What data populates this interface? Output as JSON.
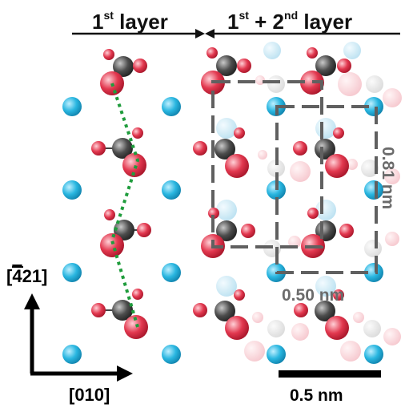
{
  "header": {
    "left_title": "1",
    "left_sup": "st",
    "left_rest": " layer",
    "right_title_a": "1",
    "right_sup_a": "st",
    "right_mid": " + 2",
    "right_sup_b": "nd",
    "right_rest": " layer"
  },
  "dimensions": {
    "height_label": "0.81 nm",
    "width_label": "0.50 nm"
  },
  "scalebar": {
    "label": "0.5 nm"
  },
  "axes": {
    "vertical_prefix": "[",
    "vertical_digit_barred": "4",
    "vertical_rest": "21]",
    "horizontal_label": "[010]"
  },
  "colors": {
    "cation": "#29b6e0",
    "oxygen": "#e2384f",
    "hydrogen_oxygen_small": "#e24a5c",
    "carbon": "#4d4d4d",
    "dashed_box": "#606060",
    "zigzag": "#1f9c3c"
  }
}
